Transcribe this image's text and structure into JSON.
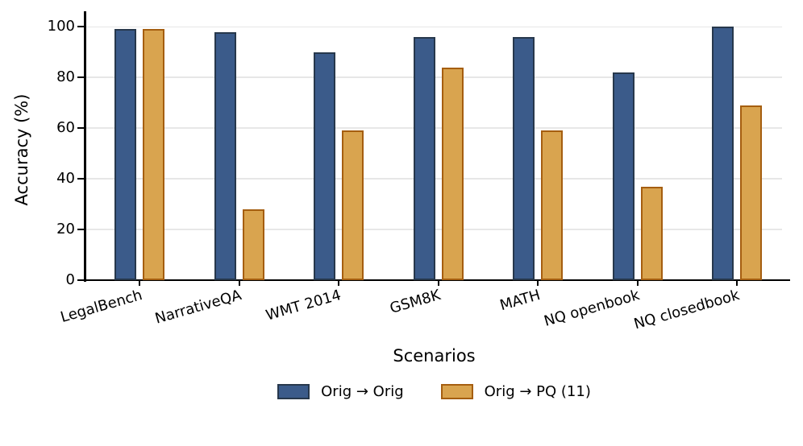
{
  "chart_data": {
    "type": "bar",
    "title": "",
    "xlabel": "Scenarios",
    "ylabel": "Accuracy (%)",
    "categories": [
      "LegalBench",
      "NarrativeQA",
      "WMT 2014",
      "GSM8K",
      "MATH",
      "NQ openbook",
      "NQ closedbook"
    ],
    "series": [
      {
        "name": "Orig → Orig",
        "values": [
          99,
          98,
          90,
          96,
          96,
          82,
          100
        ],
        "fill": "#3b5b8a",
        "edge": "#27384c"
      },
      {
        "name": "Orig → PQ (11)",
        "values": [
          99,
          28,
          59,
          84,
          59,
          37,
          69
        ],
        "fill": "#d9a44f",
        "edge": "#a55e10"
      }
    ],
    "ylim": [
      0,
      106
    ],
    "yticks": [
      0,
      20,
      40,
      60,
      80,
      100
    ],
    "grid": true,
    "gridline_color": "#e7e7e7",
    "legend_position": "bottom"
  }
}
